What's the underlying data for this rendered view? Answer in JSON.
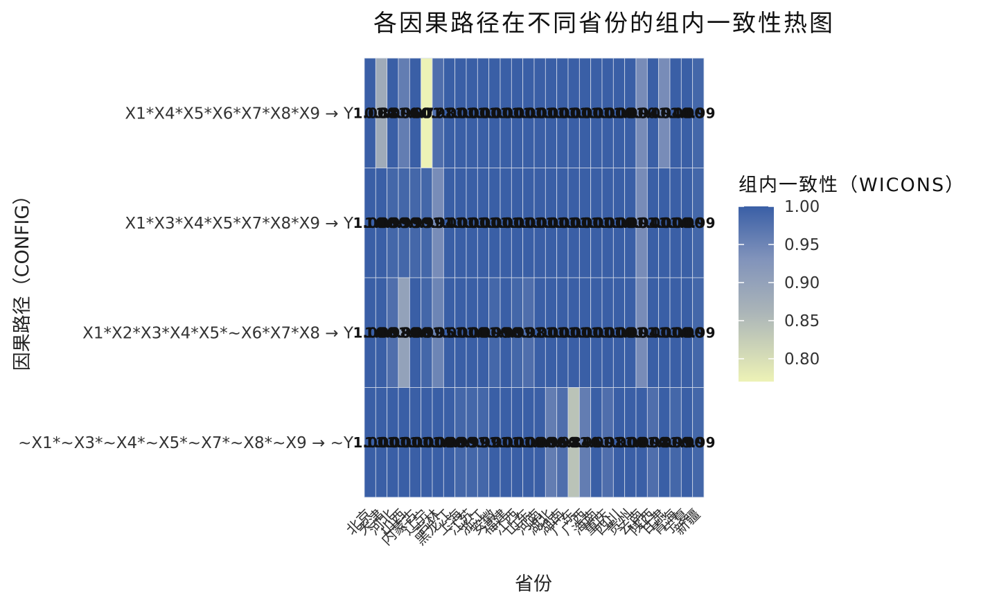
{
  "chart_data": {
    "type": "heatmap",
    "title": "各因果路径在不同省份的组内一致性热图",
    "xlabel": "省份",
    "ylabel": "因果路径（CONFIG）",
    "legend_title": "组内一致性（WICONS）",
    "legend_ticks": [
      "1.00",
      "0.95",
      "0.90",
      "0.85",
      "0.80"
    ],
    "legend_tick_values": [
      1.0,
      0.95,
      0.9,
      0.85,
      0.8
    ],
    "color_range": [
      0.77,
      1.0
    ],
    "color_low": "#edf2b6",
    "color_high": "#3a5fa6",
    "legend_position": "right",
    "provinces": [
      "北京",
      "天津",
      "河北",
      "山西",
      "内蒙古",
      "辽宁",
      "吉林",
      "黑龙江",
      "上海",
      "江苏",
      "浙江",
      "安徽",
      "福建",
      "江西",
      "山东",
      "河南",
      "湖北",
      "湖南",
      "广东",
      "广西",
      "海南",
      "重庆",
      "四川",
      "贵州",
      "云南",
      "陕西",
      "甘肃",
      "青海",
      "宁夏",
      "新疆"
    ],
    "configs": [
      "X1*X4*X5*X6*X7*X8*X9 → Y",
      "X1*X3*X4*X5*X7*X8*X9 → Y",
      "X1*X2*X3*X4*X5*~X6*X7*X8 → Y",
      "~X1*~X3*~X4*~X5*~X7*~X8*~X9 → ~Y"
    ],
    "values": [
      [
        1.0,
        0.88,
        1.0,
        0.96,
        1.0,
        0.77,
        0.98,
        1.0,
        1.0,
        1.0,
        1.0,
        1.0,
        1.0,
        1.0,
        1.0,
        1.0,
        1.0,
        1.0,
        1.0,
        1.0,
        1.0,
        1.0,
        1.0,
        1.0,
        0.94,
        1.0,
        0.94,
        1.0,
        1.0,
        0.99
      ],
      [
        1.0,
        1.0,
        0.99,
        0.99,
        0.99,
        0.99,
        0.94,
        1.0,
        1.0,
        1.0,
        1.0,
        1.0,
        1.0,
        1.0,
        1.0,
        1.0,
        1.0,
        1.0,
        1.0,
        1.0,
        1.0,
        1.0,
        1.0,
        1.0,
        0.94,
        1.0,
        1.0,
        1.0,
        1.0,
        0.99
      ],
      [
        1.0,
        1.0,
        0.98,
        0.9,
        1.0,
        0.99,
        0.95,
        1.0,
        1.0,
        1.0,
        1.0,
        0.99,
        1.0,
        0.99,
        0.98,
        1.0,
        1.0,
        1.0,
        1.0,
        1.0,
        1.0,
        1.0,
        1.0,
        1.0,
        0.94,
        1.0,
        1.0,
        1.0,
        1.0,
        0.99
      ],
      [
        1.0,
        1.0,
        1.0,
        1.0,
        1.0,
        1.0,
        1.0,
        1.0,
        0.99,
        0.99,
        0.99,
        1.0,
        1.0,
        1.0,
        1.0,
        1.0,
        0.96,
        0.98,
        0.84,
        0.96,
        1.0,
        0.98,
        1.0,
        1.0,
        1.0,
        0.98,
        1.0,
        0.99,
        1.0,
        0.99
      ]
    ],
    "value_labels": [
      [
        "1.00",
        "0.88",
        "1.00",
        "0.96",
        "1.00",
        "0.77",
        "0.98",
        "1.00",
        "1.00",
        "1.00",
        "1.00",
        "1.00",
        "1.00",
        "1.00",
        "1.00",
        "1.00",
        "1.00",
        "1.00",
        "1.00",
        "1.00",
        "1.00",
        "1.00",
        "1.00",
        "1.00",
        "0.94",
        "1.00",
        "0.94",
        "1.00",
        "1.00",
        "0.99"
      ],
      [
        "1.00",
        "1.00",
        "0.99",
        "0.99",
        "0.99",
        "0.99",
        "0.94",
        "1.00",
        "1.00",
        "1.00",
        "1.00",
        "1.00",
        "1.00",
        "1.00",
        "1.00",
        "1.00",
        "1.00",
        "1.00",
        "1.00",
        "1.00",
        "1.00",
        "1.00",
        "1.00",
        "1.00",
        "0.94",
        "1.00",
        "1.00",
        "1.00",
        "1.00",
        "0.99"
      ],
      [
        "1.00",
        "1.00",
        "0.98",
        "0.90",
        "1.00",
        "0.99",
        "0.95",
        "1.00",
        "1.00",
        "1.00",
        "1.00",
        "0.99",
        "1.00",
        "0.99",
        "0.98",
        "1.00",
        "1.00",
        "1.00",
        "1.00",
        "1.00",
        "1.00",
        "1.00",
        "1.00",
        "1.00",
        "0.94",
        "1.00",
        "1.00",
        "1.00",
        "1.00",
        "0.99"
      ],
      [
        "1.00",
        "1.00",
        "1.00",
        "1.00",
        "1.00",
        "1.00",
        "1.00",
        "1.00",
        "0.99",
        "0.99",
        "0.99",
        "1.00",
        "1.00",
        "1.00",
        "1.00",
        "1.00",
        "0.96",
        "0.98",
        "0.84",
        "0.96",
        "1.00",
        "0.98",
        "1.00",
        "1.00",
        "1.00",
        "0.98",
        "1.00",
        "0.99",
        "1.00",
        "0.99"
      ]
    ]
  }
}
